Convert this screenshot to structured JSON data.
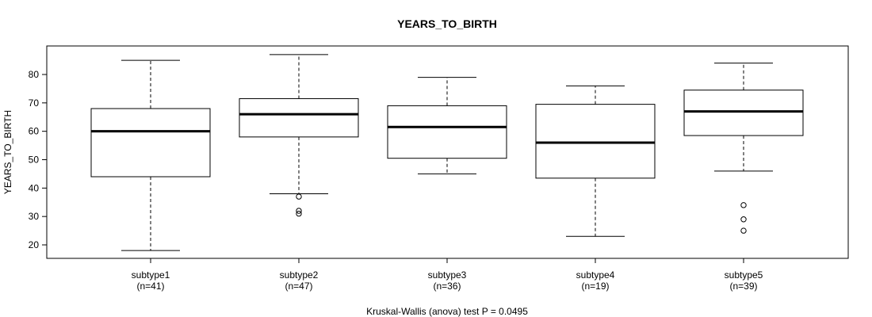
{
  "chart_data": {
    "type": "boxplot",
    "title": "YEARS_TO_BIRTH",
    "xlabel": "Kruskal-Wallis (anova) test P = 0.0495",
    "ylabel": "YEARS_TO_BIRTH",
    "ylim": [
      15,
      89
    ],
    "yticks": [
      20,
      30,
      40,
      50,
      60,
      70,
      80
    ],
    "grid": false,
    "categories": [
      "subtype1",
      "subtype2",
      "subtype3",
      "subtype4",
      "subtype5"
    ],
    "counts": [
      "(n=41)",
      "(n=47)",
      "(n=36)",
      "(n=19)",
      "(n=39)"
    ],
    "boxes": [
      {
        "whisker_low": 18,
        "q1": 44,
        "median": 60,
        "q3": 68,
        "whisker_high": 85,
        "outliers": []
      },
      {
        "whisker_low": 38,
        "q1": 58,
        "median": 66,
        "q3": 71.5,
        "whisker_high": 87,
        "outliers": [
          37,
          32,
          31
        ]
      },
      {
        "whisker_low": 45,
        "q1": 50.5,
        "median": 61.5,
        "q3": 69,
        "whisker_high": 79,
        "outliers": []
      },
      {
        "whisker_low": 23,
        "q1": 43.5,
        "median": 56,
        "q3": 69.5,
        "whisker_high": 76,
        "outliers": []
      },
      {
        "whisker_low": 46,
        "q1": 58.5,
        "median": 67,
        "q3": 74.5,
        "whisker_high": 84,
        "outliers": [
          34,
          29,
          25
        ]
      }
    ]
  }
}
